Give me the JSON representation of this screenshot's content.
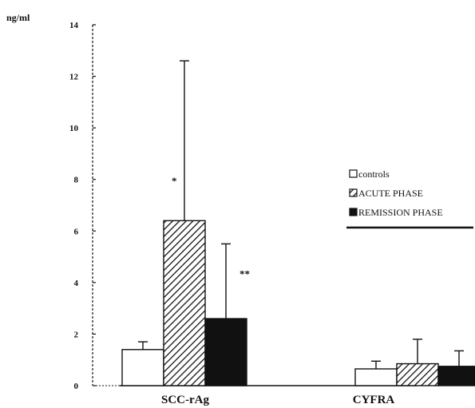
{
  "chart_data": {
    "type": "bar",
    "ylabel": "ng/ml",
    "ylim": [
      0,
      14
    ],
    "yticks": [
      0,
      2,
      4,
      6,
      8,
      10,
      12,
      14
    ],
    "categories": [
      "SCC-rAg",
      "CYFRA"
    ],
    "series": [
      {
        "name": "controls",
        "fill": "white",
        "values": [
          1.4,
          0.65
        ],
        "errors": [
          0.3,
          0.3
        ]
      },
      {
        "name": "ACUTE PHASE",
        "fill": "hatched",
        "values": [
          6.4,
          0.85
        ],
        "errors": [
          6.2,
          0.95
        ]
      },
      {
        "name": "REMISSION PHASE",
        "fill": "black",
        "values": [
          2.6,
          0.75
        ],
        "errors": [
          2.9,
          0.6
        ]
      }
    ],
    "annotations": [
      {
        "text": "*",
        "category": "SCC-rAg",
        "series": "ACUTE PHASE",
        "y": 7.8
      },
      {
        "text": "**",
        "category": "SCC-rAg",
        "series": "REMISSION PHASE",
        "y": 4.2
      }
    ],
    "legend_position": "right",
    "colors": {
      "ink": "#111111",
      "paper": "#ffffff"
    }
  }
}
